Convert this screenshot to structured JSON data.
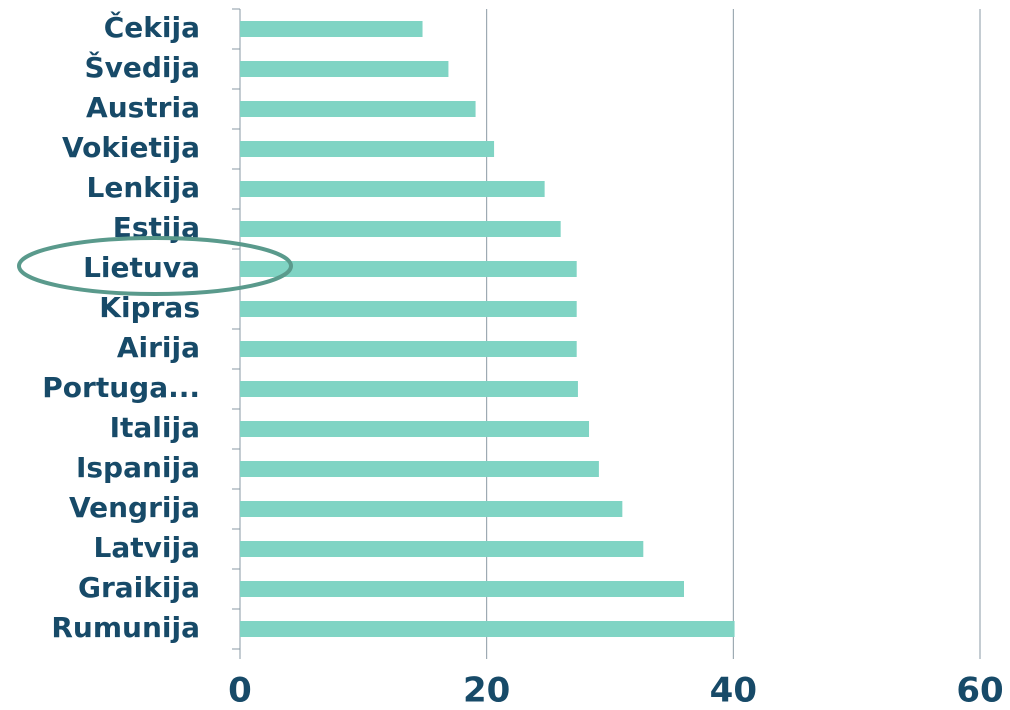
{
  "chart_data": {
    "type": "bar",
    "orientation": "horizontal",
    "categories": [
      "Čekija",
      "Švedija",
      "Austria",
      "Vokietija",
      "Lenkija",
      "Estija",
      "Lietuva",
      "Kipras",
      "Airija",
      "Portuga...",
      "Italija",
      "Ispanija",
      "Vengrija",
      "Latvija",
      "Graikija",
      "Rumunija"
    ],
    "values": [
      14.8,
      16.9,
      19.1,
      20.6,
      24.7,
      26.0,
      27.3,
      27.3,
      27.3,
      27.4,
      28.3,
      29.1,
      31.0,
      32.7,
      36.0,
      40.1
    ],
    "color": "#80d4c4",
    "xlim": [
      0,
      60
    ],
    "xticks": [
      0,
      20,
      40,
      60
    ],
    "grid": true
  }
}
